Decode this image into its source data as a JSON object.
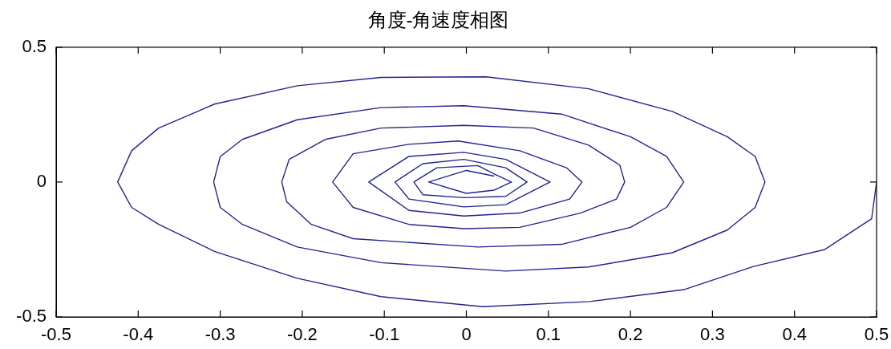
{
  "chart_data": {
    "type": "line",
    "title": "角度-角速度相图",
    "series": [
      {
        "color": "#24248f",
        "x": [
          0.5,
          0.494,
          0.437,
          0.35,
          0.265,
          0.15,
          0.02,
          -0.104,
          -0.206,
          -0.307,
          -0.375,
          -0.408,
          -0.425,
          -0.408,
          -0.375,
          -0.307,
          -0.206,
          -0.104,
          0.024,
          0.149,
          0.251,
          0.318,
          0.352,
          0.364,
          0.352,
          0.318,
          0.251,
          0.149,
          0.048,
          -0.104,
          -0.206,
          -0.273,
          -0.3,
          -0.308,
          -0.3,
          -0.273,
          -0.206,
          -0.104,
          -0.003,
          0.116,
          0.2,
          0.244,
          0.265,
          0.244,
          0.2,
          0.116,
          0.014,
          -0.138,
          -0.189,
          -0.219,
          -0.225,
          -0.216,
          -0.172,
          -0.104,
          -0.003,
          0.082,
          0.149,
          0.187,
          0.193,
          0.183,
          0.139,
          0.065,
          -0.003,
          -0.07,
          -0.138,
          -0.163,
          -0.138,
          -0.07,
          -0.01,
          0.065,
          0.122,
          0.141,
          0.126,
          0.065,
          -0.003,
          -0.07,
          -0.119,
          -0.07,
          -0.003,
          0.048,
          0.102,
          0.048,
          -0.003,
          -0.07,
          -0.087,
          -0.053,
          -0.003,
          0.048,
          0.074,
          0.048,
          -0.003,
          -0.053,
          -0.064,
          -0.036,
          0.014,
          0.034,
          0.055,
          0.034,
          0,
          -0.046,
          0,
          0.034
        ],
        "values": [
          0,
          -0.136,
          -0.25,
          -0.313,
          -0.399,
          -0.443,
          -0.462,
          -0.425,
          -0.357,
          -0.257,
          -0.157,
          -0.094,
          0,
          0.116,
          0.2,
          0.289,
          0.357,
          0.388,
          0.39,
          0.346,
          0.262,
          0.168,
          0.095,
          0,
          -0.094,
          -0.178,
          -0.262,
          -0.315,
          -0.33,
          -0.299,
          -0.241,
          -0.157,
          -0.094,
          0,
          0.094,
          0.158,
          0.231,
          0.276,
          0.283,
          0.252,
          0.168,
          0.095,
          0,
          -0.094,
          -0.168,
          -0.231,
          -0.241,
          -0.21,
          -0.157,
          -0.073,
          0,
          0.084,
          0.158,
          0.2,
          0.21,
          0.2,
          0.137,
          0.063,
          0,
          -0.063,
          -0.115,
          -0.168,
          -0.173,
          -0.157,
          -0.094,
          0,
          0.105,
          0.14,
          0.152,
          0.116,
          0.053,
          0,
          -0.063,
          -0.115,
          -0.126,
          -0.105,
          0,
          0.095,
          0.11,
          0.084,
          0,
          -0.084,
          -0.092,
          -0.063,
          0,
          0.068,
          0.084,
          0.053,
          0,
          -0.053,
          -0.058,
          -0.047,
          0,
          0.053,
          0.061,
          0.03,
          0,
          -0.03,
          -0.042,
          0,
          0.043,
          0.022
        ]
      }
    ],
    "xlim": [
      -0.5,
      0.5
    ],
    "xticks": [
      -0.5,
      -0.4,
      -0.3,
      -0.2,
      -0.1,
      0,
      0.1,
      0.2,
      0.3,
      0.4,
      0.5
    ],
    "ylim": [
      -0.5,
      0.5
    ],
    "yticks": [
      -0.5,
      0,
      0.5
    ]
  }
}
